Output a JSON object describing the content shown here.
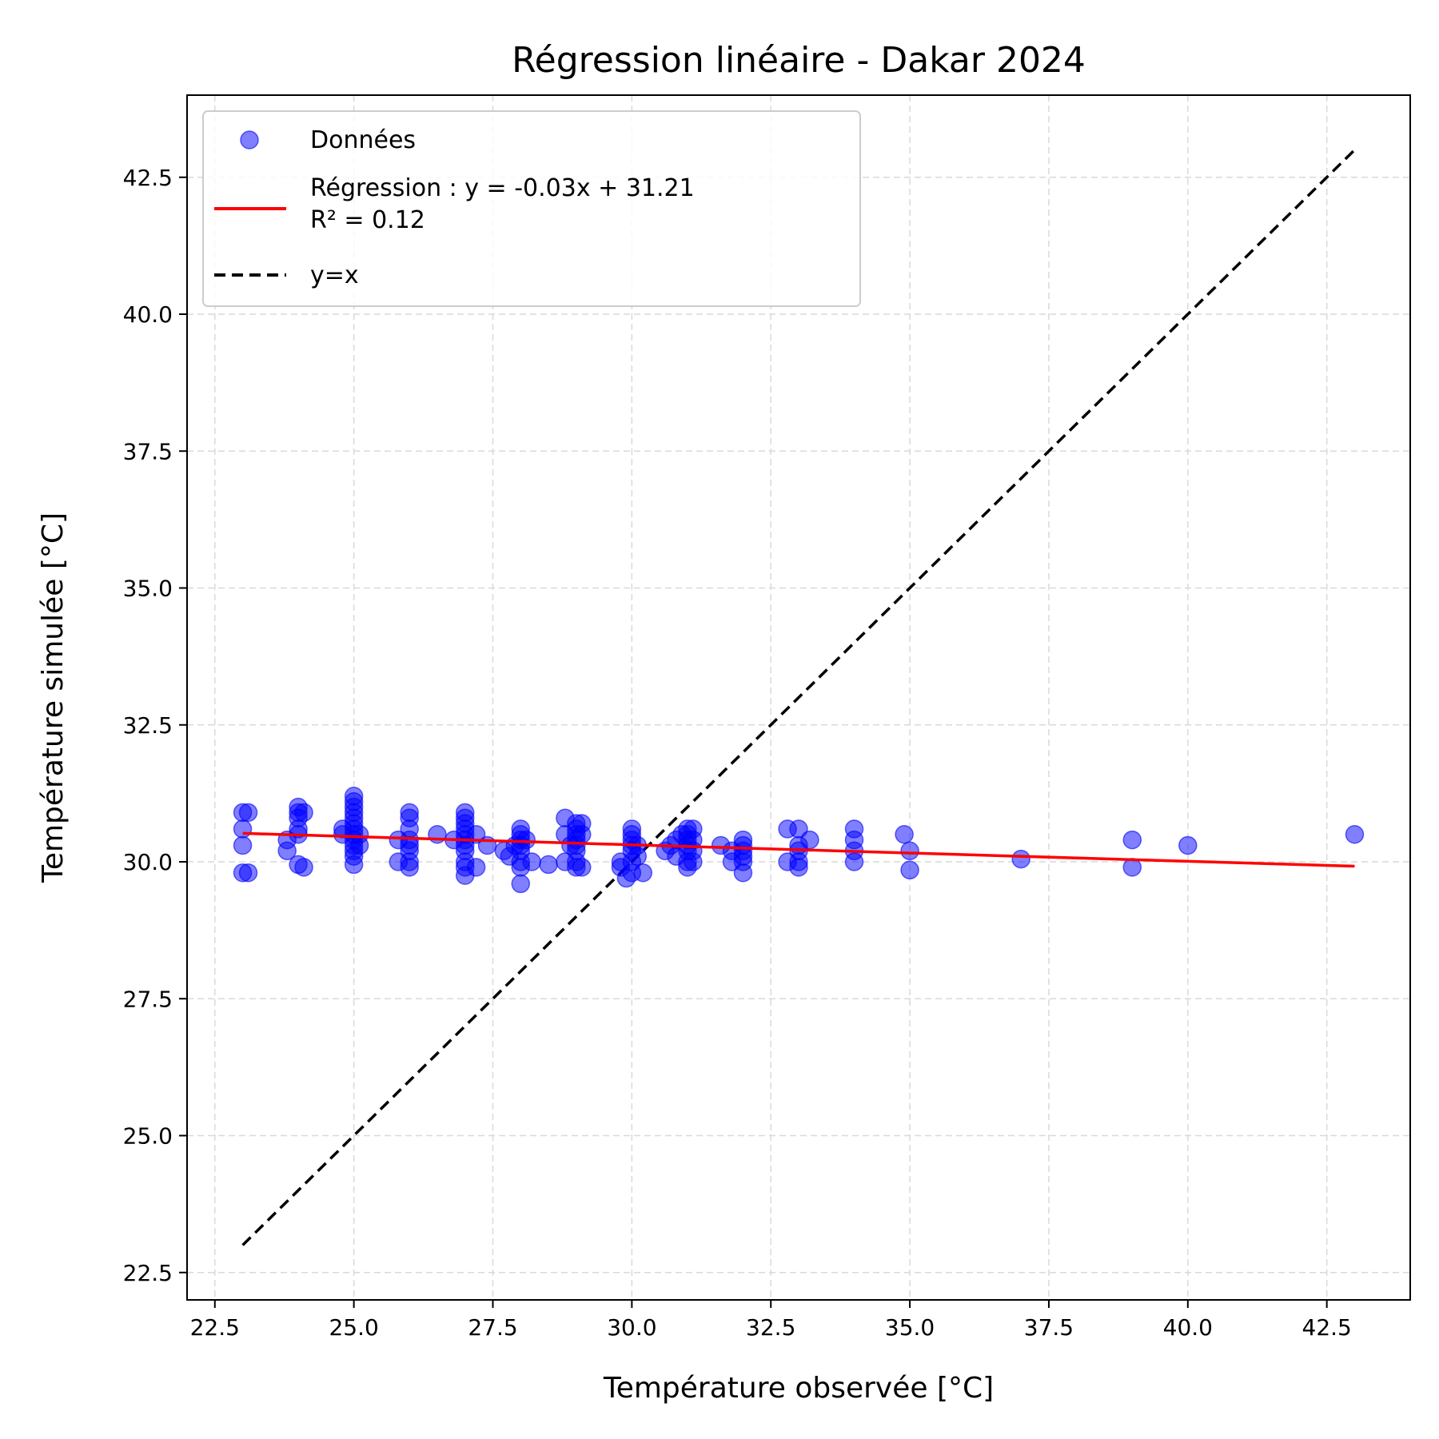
{
  "chart_data": {
    "type": "scatter",
    "title": "Régression linéaire - Dakar 2024",
    "xlabel": "Température observée [°C]",
    "ylabel": "Température simulée [°C]",
    "xlim": [
      22.0,
      44.0
    ],
    "ylim": [
      22.0,
      44.0
    ],
    "xticks": [
      "22.5",
      "25.0",
      "27.5",
      "30.0",
      "32.5",
      "35.0",
      "37.5",
      "40.0",
      "42.5"
    ],
    "yticks": [
      "22.5",
      "25.0",
      "27.5",
      "30.0",
      "32.5",
      "35.0",
      "37.5",
      "40.0",
      "42.5"
    ],
    "grid": true,
    "legend_position": "top-left",
    "legend": {
      "points_label": "Données",
      "regression_label": "Régression : y = -0.03x + 31.21",
      "r2_label": "R² = 0.12",
      "identity_label": "y=x"
    },
    "colors": {
      "points": "#0000ff",
      "regression": "#ff0000",
      "identity": "#000000"
    },
    "series": [
      {
        "name": "Données",
        "points": [
          [
            23.0,
            30.9
          ],
          [
            23.0,
            30.6
          ],
          [
            23.0,
            30.3
          ],
          [
            23.0,
            29.8
          ],
          [
            23.1,
            30.9
          ],
          [
            23.1,
            29.8
          ],
          [
            23.8,
            30.4
          ],
          [
            23.8,
            30.2
          ],
          [
            24.0,
            31.0
          ],
          [
            24.0,
            30.9
          ],
          [
            24.0,
            30.8
          ],
          [
            24.0,
            30.6
          ],
          [
            24.0,
            30.5
          ],
          [
            24.0,
            29.95
          ],
          [
            24.1,
            30.9
          ],
          [
            24.1,
            29.9
          ],
          [
            24.8,
            30.6
          ],
          [
            24.8,
            30.5
          ],
          [
            25.0,
            31.2
          ],
          [
            25.0,
            31.1
          ],
          [
            25.0,
            31.0
          ],
          [
            25.0,
            30.9
          ],
          [
            25.0,
            30.8
          ],
          [
            25.0,
            30.7
          ],
          [
            25.0,
            30.6
          ],
          [
            25.0,
            30.5
          ],
          [
            25.0,
            30.4
          ],
          [
            25.0,
            30.3
          ],
          [
            25.0,
            30.2
          ],
          [
            25.0,
            30.1
          ],
          [
            25.0,
            29.95
          ],
          [
            25.1,
            30.5
          ],
          [
            25.1,
            30.3
          ],
          [
            25.8,
            30.4
          ],
          [
            25.8,
            30.0
          ],
          [
            26.0,
            30.9
          ],
          [
            26.0,
            30.8
          ],
          [
            26.0,
            30.6
          ],
          [
            26.0,
            30.4
          ],
          [
            26.0,
            30.3
          ],
          [
            26.0,
            30.2
          ],
          [
            26.0,
            30.0
          ],
          [
            26.0,
            29.9
          ],
          [
            26.5,
            30.5
          ],
          [
            26.8,
            30.4
          ],
          [
            27.0,
            30.9
          ],
          [
            27.0,
            30.8
          ],
          [
            27.0,
            30.7
          ],
          [
            27.0,
            30.6
          ],
          [
            27.0,
            30.5
          ],
          [
            27.0,
            30.4
          ],
          [
            27.0,
            30.3
          ],
          [
            27.0,
            30.2
          ],
          [
            27.0,
            30.0
          ],
          [
            27.0,
            29.9
          ],
          [
            27.0,
            29.75
          ],
          [
            27.2,
            30.5
          ],
          [
            27.2,
            29.9
          ],
          [
            27.4,
            30.3
          ],
          [
            27.7,
            30.2
          ],
          [
            27.8,
            30.1
          ],
          [
            27.9,
            30.3
          ],
          [
            28.0,
            30.6
          ],
          [
            28.0,
            30.5
          ],
          [
            28.0,
            30.4
          ],
          [
            28.0,
            30.3
          ],
          [
            28.0,
            30.2
          ],
          [
            28.0,
            30.0
          ],
          [
            28.0,
            29.9
          ],
          [
            28.0,
            29.6
          ],
          [
            28.1,
            30.4
          ],
          [
            28.2,
            30.0
          ],
          [
            28.5,
            29.95
          ],
          [
            28.8,
            30.8
          ],
          [
            28.8,
            30.5
          ],
          [
            28.8,
            30.0
          ],
          [
            28.9,
            30.3
          ],
          [
            29.0,
            30.7
          ],
          [
            29.0,
            30.6
          ],
          [
            29.0,
            30.5
          ],
          [
            29.0,
            30.4
          ],
          [
            29.0,
            30.3
          ],
          [
            29.0,
            30.2
          ],
          [
            29.0,
            30.0
          ],
          [
            29.0,
            29.9
          ],
          [
            29.1,
            30.7
          ],
          [
            29.1,
            30.5
          ],
          [
            29.1,
            29.9
          ],
          [
            29.8,
            30.0
          ],
          [
            29.8,
            29.9
          ],
          [
            29.9,
            29.7
          ],
          [
            30.0,
            30.6
          ],
          [
            30.0,
            30.5
          ],
          [
            30.0,
            30.4
          ],
          [
            30.0,
            30.3
          ],
          [
            30.0,
            30.2
          ],
          [
            30.0,
            30.0
          ],
          [
            30.0,
            29.8
          ],
          [
            30.1,
            30.3
          ],
          [
            30.1,
            30.1
          ],
          [
            30.2,
            29.8
          ],
          [
            30.6,
            30.2
          ],
          [
            30.7,
            30.3
          ],
          [
            30.8,
            30.4
          ],
          [
            30.8,
            30.1
          ],
          [
            30.9,
            30.5
          ],
          [
            31.0,
            30.6
          ],
          [
            31.0,
            30.5
          ],
          [
            31.0,
            30.4
          ],
          [
            31.0,
            30.3
          ],
          [
            31.0,
            30.2
          ],
          [
            31.0,
            30.0
          ],
          [
            31.0,
            29.9
          ],
          [
            31.1,
            30.6
          ],
          [
            31.1,
            30.4
          ],
          [
            31.1,
            30.2
          ],
          [
            31.1,
            30.0
          ],
          [
            31.6,
            30.3
          ],
          [
            31.8,
            30.2
          ],
          [
            31.8,
            30.0
          ],
          [
            32.0,
            30.4
          ],
          [
            32.0,
            30.3
          ],
          [
            32.0,
            30.2
          ],
          [
            32.0,
            30.1
          ],
          [
            32.0,
            30.0
          ],
          [
            32.0,
            29.8
          ],
          [
            32.8,
            30.6
          ],
          [
            32.8,
            30.0
          ],
          [
            33.0,
            30.6
          ],
          [
            33.0,
            30.3
          ],
          [
            33.0,
            30.2
          ],
          [
            33.0,
            30.0
          ],
          [
            33.0,
            29.9
          ],
          [
            33.2,
            30.4
          ],
          [
            34.0,
            30.6
          ],
          [
            34.0,
            30.4
          ],
          [
            34.0,
            30.2
          ],
          [
            34.0,
            30.0
          ],
          [
            34.9,
            30.5
          ],
          [
            35.0,
            30.2
          ],
          [
            35.0,
            29.85
          ],
          [
            37.0,
            30.05
          ],
          [
            39.0,
            30.4
          ],
          [
            39.0,
            29.9
          ],
          [
            40.0,
            30.3
          ],
          [
            43.0,
            30.5
          ]
        ]
      },
      {
        "name": "Régression : y = -0.03x + 31.21",
        "slope": -0.03,
        "intercept": 31.21,
        "x_range": [
          23.0,
          43.0
        ]
      },
      {
        "name": "y=x",
        "x_range": [
          23.0,
          43.0
        ]
      }
    ]
  }
}
